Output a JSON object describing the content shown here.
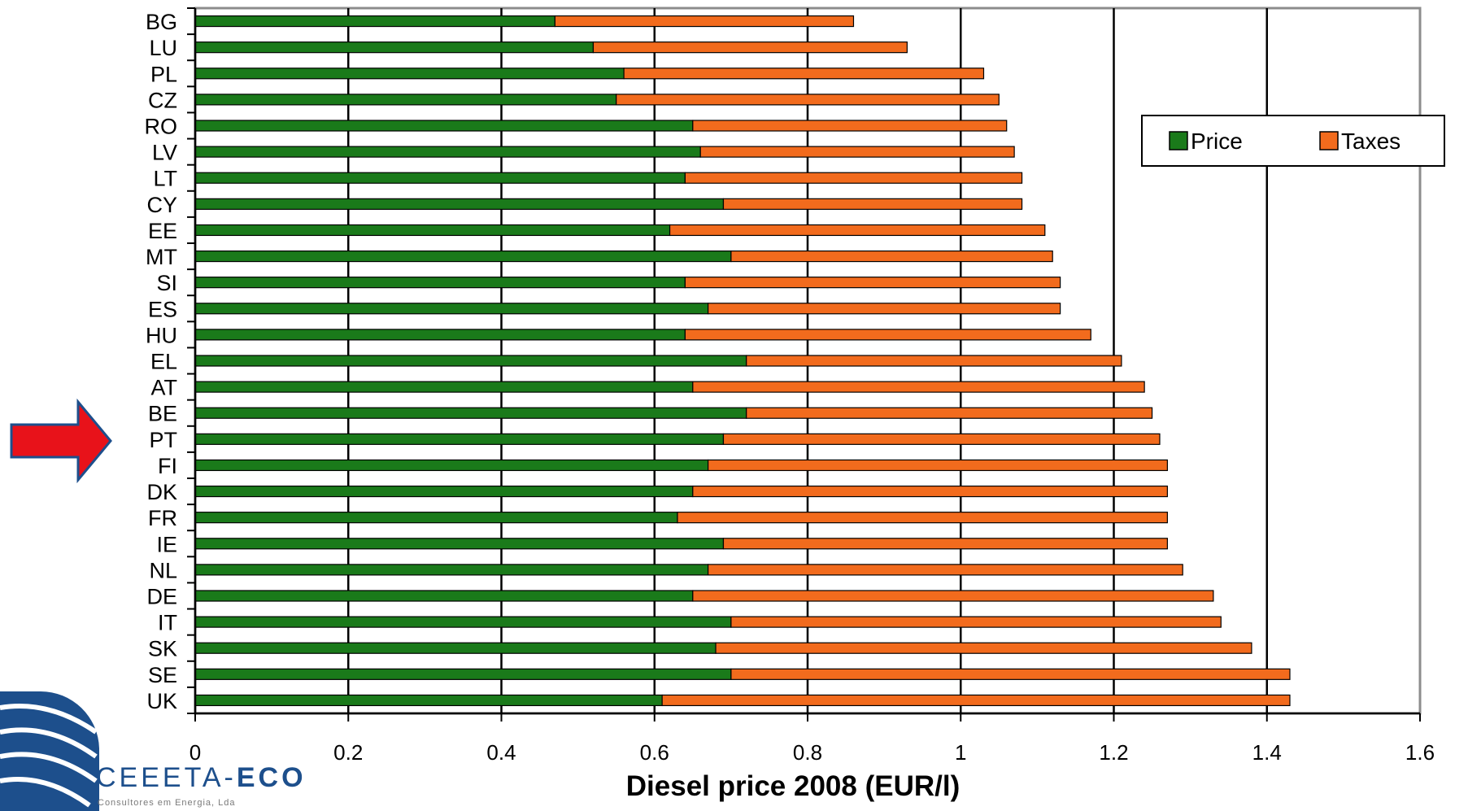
{
  "chart_data": {
    "type": "bar",
    "orientation": "horizontal",
    "stacked": true,
    "title": "",
    "xlabel": "Diesel price 2008 (EUR/l)",
    "ylabel": "",
    "xlim": [
      0,
      1.6
    ],
    "xticks": [
      "0",
      "0.2",
      "0.4",
      "0.6",
      "0.8",
      "1",
      "1.2",
      "1.4",
      "1.6"
    ],
    "grid": "vertical",
    "legend_position": "upper-right",
    "categories": [
      "BG",
      "LU",
      "PL",
      "CZ",
      "RO",
      "LV",
      "LT",
      "CY",
      "EE",
      "MT",
      "SI",
      "ES",
      "HU",
      "EL",
      "AT",
      "BE",
      "PT",
      "FI",
      "DK",
      "FR",
      "IE",
      "NL",
      "DE",
      "IT",
      "SK",
      "SE",
      "UK"
    ],
    "series": [
      {
        "name": "Price",
        "color": "#1a7a1a",
        "values": [
          0.47,
          0.52,
          0.56,
          0.55,
          0.65,
          0.66,
          0.64,
          0.69,
          0.62,
          0.7,
          0.64,
          0.67,
          0.64,
          0.72,
          0.65,
          0.72,
          0.69,
          0.67,
          0.65,
          0.63,
          0.69,
          0.67,
          0.65,
          0.7,
          0.68,
          0.7,
          0.61
        ]
      },
      {
        "name": "Taxes",
        "color": "#f26b1d",
        "values": [
          0.39,
          0.41,
          0.47,
          0.5,
          0.41,
          0.41,
          0.44,
          0.39,
          0.49,
          0.42,
          0.49,
          0.46,
          0.53,
          0.49,
          0.59,
          0.53,
          0.57,
          0.6,
          0.62,
          0.64,
          0.58,
          0.62,
          0.68,
          0.64,
          0.7,
          0.73,
          0.82
        ]
      }
    ],
    "highlight_arrow": {
      "category": "PT",
      "color": "#e8121a"
    }
  },
  "logo": {
    "name_part1": "CEEETA-",
    "name_part2": "ECO",
    "tagline": "Consultores em Energia, Lda",
    "color": "#1d4f8c"
  }
}
